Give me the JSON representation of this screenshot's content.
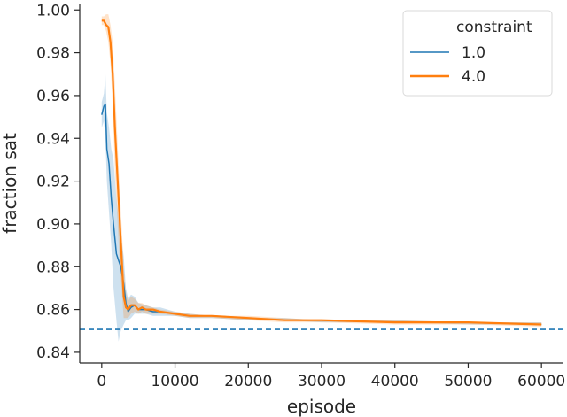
{
  "chart_data": {
    "type": "line",
    "title": "",
    "xlabel": "episode",
    "ylabel": "fraction sat",
    "xlim": [
      -3000,
      63000
    ],
    "ylim": [
      0.835,
      1.003
    ],
    "x_ticks": [
      0,
      10000,
      20000,
      30000,
      40000,
      50000,
      60000
    ],
    "y_ticks": [
      0.84,
      0.86,
      0.88,
      0.9,
      0.92,
      0.94,
      0.96,
      0.98,
      1.0
    ],
    "x_tick_labels": [
      "0",
      "10000",
      "20000",
      "30000",
      "40000",
      "50000",
      "60000"
    ],
    "y_tick_labels": [
      "0.84",
      "0.86",
      "0.88",
      "0.90",
      "0.92",
      "0.94",
      "0.96",
      "0.98",
      "1.00"
    ],
    "grid": false,
    "legend": {
      "title": "constraint",
      "placement": "top-right",
      "entries": [
        "1.0",
        "4.0"
      ]
    },
    "reference_line": {
      "y": 0.8507,
      "style": "dashed",
      "color": "#1f77b4"
    },
    "series": [
      {
        "name": "1.0",
        "color": "#1f77b4",
        "x": [
          0,
          300,
          500,
          700,
          1000,
          1300,
          1600,
          2000,
          2300,
          2600,
          3000,
          3300,
          3600,
          4000,
          4500,
          5000,
          6000,
          7000,
          8000,
          10000,
          12000,
          15000,
          20000,
          25000,
          30000,
          40000,
          50000,
          60000
        ],
        "y": [
          0.951,
          0.955,
          0.956,
          0.935,
          0.928,
          0.912,
          0.9,
          0.886,
          0.883,
          0.88,
          0.872,
          0.863,
          0.859,
          0.861,
          0.862,
          0.86,
          0.86,
          0.859,
          0.859,
          0.858,
          0.857,
          0.857,
          0.856,
          0.855,
          0.855,
          0.854,
          0.854,
          0.853
        ],
        "upper": [
          0.957,
          0.961,
          0.97,
          0.952,
          0.945,
          0.935,
          0.93,
          0.912,
          0.902,
          0.895,
          0.885,
          0.87,
          0.865,
          0.867,
          0.866,
          0.863,
          0.862,
          0.861,
          0.861,
          0.859,
          0.858,
          0.857,
          0.856,
          0.856,
          0.855,
          0.855,
          0.854,
          0.854
        ],
        "lower": [
          0.945,
          0.948,
          0.94,
          0.92,
          0.905,
          0.89,
          0.87,
          0.855,
          0.845,
          0.85,
          0.853,
          0.855,
          0.855,
          0.856,
          0.858,
          0.858,
          0.858,
          0.857,
          0.857,
          0.857,
          0.856,
          0.856,
          0.855,
          0.855,
          0.854,
          0.854,
          0.853,
          0.853
        ]
      },
      {
        "name": "4.0",
        "color": "#ff7f0e",
        "x": [
          0,
          300,
          600,
          900,
          1200,
          1500,
          1800,
          2100,
          2400,
          2700,
          3000,
          3300,
          3600,
          4000,
          4500,
          5000,
          5500,
          6000,
          7000,
          8000,
          10000,
          12000,
          15000,
          20000,
          25000,
          30000,
          40000,
          50000,
          60000
        ],
        "y": [
          0.995,
          0.995,
          0.993,
          0.992,
          0.985,
          0.97,
          0.945,
          0.925,
          0.905,
          0.885,
          0.866,
          0.861,
          0.86,
          0.862,
          0.862,
          0.86,
          0.861,
          0.86,
          0.86,
          0.859,
          0.858,
          0.857,
          0.857,
          0.856,
          0.855,
          0.855,
          0.854,
          0.854,
          0.853
        ],
        "upper": [
          0.997,
          0.997,
          0.998,
          0.998,
          0.993,
          0.985,
          0.965,
          0.942,
          0.92,
          0.9,
          0.88,
          0.868,
          0.864,
          0.866,
          0.865,
          0.863,
          0.863,
          0.862,
          0.861,
          0.86,
          0.859,
          0.858,
          0.857,
          0.857,
          0.856,
          0.855,
          0.855,
          0.854,
          0.854
        ],
        "lower": [
          0.993,
          0.993,
          0.99,
          0.985,
          0.975,
          0.955,
          0.925,
          0.905,
          0.885,
          0.87,
          0.856,
          0.856,
          0.856,
          0.858,
          0.859,
          0.858,
          0.859,
          0.858,
          0.858,
          0.858,
          0.857,
          0.856,
          0.856,
          0.855,
          0.854,
          0.854,
          0.853,
          0.853,
          0.852
        ]
      }
    ]
  }
}
